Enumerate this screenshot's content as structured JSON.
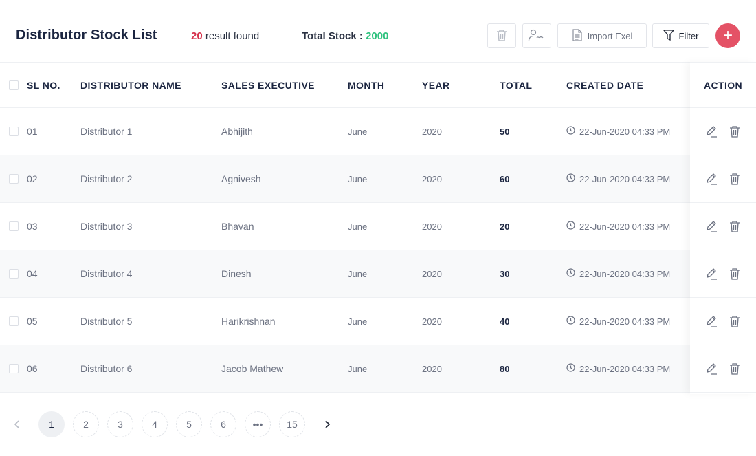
{
  "header": {
    "title": "Distributor Stock List",
    "result_count": "20",
    "result_suffix": " result found",
    "total_stock_label": "Total Stock : ",
    "total_stock_value": "2000",
    "import_label": "Import Exel",
    "filter_label": "Filter",
    "add_symbol": "+"
  },
  "colors": {
    "accent": "#e45266",
    "count_red": "#d6334d",
    "stock_green": "#2ec27e",
    "heading": "#1b2540"
  },
  "table": {
    "columns": [
      "SL NO.",
      "DISTRIBUTOR NAME",
      "SALES EXECUTIVE",
      "MONTH",
      "YEAR",
      "TOTAL",
      "CREATED DATE"
    ],
    "action_header": "ACTION",
    "rows": [
      {
        "sl": "01",
        "name": "Distributor 1",
        "exec": "Abhijith",
        "month": "June",
        "year": "2020",
        "total": "50",
        "date": "22-Jun-2020 04:33 PM"
      },
      {
        "sl": "02",
        "name": "Distributor 2",
        "exec": "Agnivesh",
        "month": "June",
        "year": "2020",
        "total": "60",
        "date": "22-Jun-2020 04:33 PM"
      },
      {
        "sl": "03",
        "name": "Distributor 3",
        "exec": "Bhavan",
        "month": "June",
        "year": "2020",
        "total": "20",
        "date": "22-Jun-2020 04:33 PM"
      },
      {
        "sl": "04",
        "name": "Distributor 4",
        "exec": "Dinesh",
        "month": "June",
        "year": "2020",
        "total": "30",
        "date": "22-Jun-2020 04:33 PM"
      },
      {
        "sl": "05",
        "name": "Distributor 5",
        "exec": "Harikrishnan",
        "month": "June",
        "year": "2020",
        "total": "40",
        "date": "22-Jun-2020 04:33 PM"
      },
      {
        "sl": "06",
        "name": "Distributor 6",
        "exec": "Jacob Mathew",
        "month": "June",
        "year": "2020",
        "total": "80",
        "date": "22-Jun-2020 04:33 PM"
      }
    ]
  },
  "pagination": {
    "pages": [
      "1",
      "2",
      "3",
      "4",
      "5",
      "6",
      "•••",
      "15"
    ],
    "current": "1"
  },
  "icons": {
    "toolbar": [
      "trash-icon",
      "assign-user-icon",
      "document-icon",
      "filter-icon"
    ],
    "row_actions": [
      "edit-icon",
      "delete-icon"
    ],
    "date": "clock-icon",
    "pager": [
      "chevron-left-icon",
      "chevron-right-icon"
    ]
  }
}
